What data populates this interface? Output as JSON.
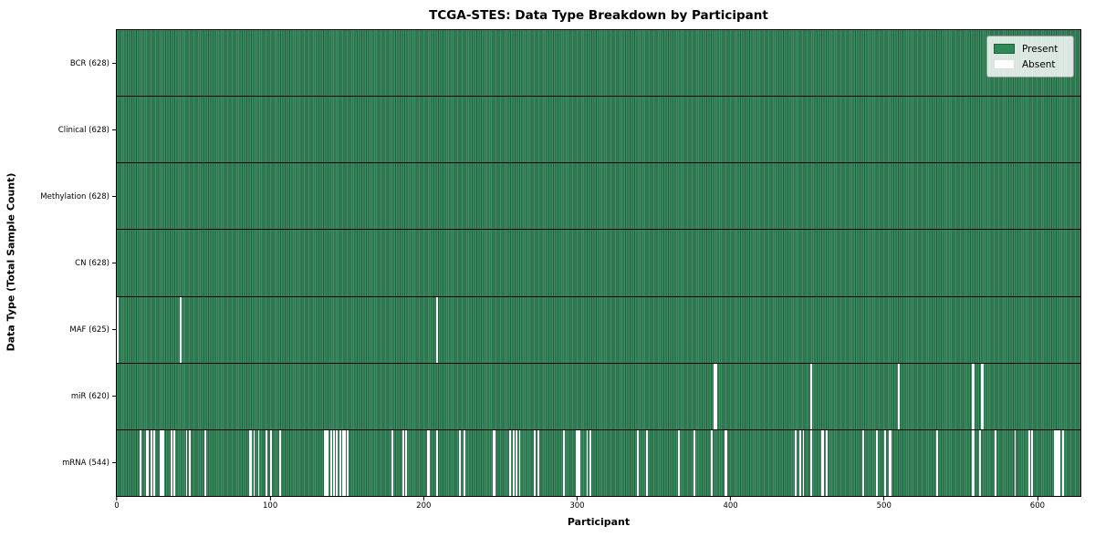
{
  "title": "TCGA-STES: Data Type Breakdown by Participant",
  "chart_data": {
    "type": "heatmap",
    "title": "TCGA-STES: Data Type Breakdown by Participant",
    "xlabel": "Participant",
    "ylabel": "Data Type (Total Sample Count)",
    "x_ticks": [
      0,
      100,
      200,
      300,
      400,
      500,
      600
    ],
    "x_range": [
      0,
      628
    ],
    "total_participants": 628,
    "grid": false,
    "legend_position": "upper right",
    "legend": {
      "entries": [
        {
          "label": "Present",
          "color": "#2e8b57"
        },
        {
          "label": "Absent",
          "color": "#ffffff"
        }
      ]
    },
    "rows": [
      {
        "label": "BCR",
        "present_count": 628,
        "absent_participants": []
      },
      {
        "label": "Clinical",
        "present_count": 628,
        "absent_participants": []
      },
      {
        "label": "Methylation",
        "present_count": 628,
        "absent_participants": []
      },
      {
        "label": "CN",
        "present_count": 628,
        "absent_participants": []
      },
      {
        "label": "MAF",
        "present_count": 625,
        "absent_participants": [
          0,
          41,
          208
        ]
      },
      {
        "label": "miR",
        "present_count": 620,
        "absent_participants": [
          389,
          390,
          452,
          509,
          557,
          558,
          563,
          564
        ]
      },
      {
        "label": "mRNA",
        "present_count": 544,
        "absent_participants": [
          15,
          19,
          20,
          22,
          24,
          28,
          29,
          30,
          35,
          37,
          45,
          47,
          57,
          86,
          87,
          89,
          92,
          97,
          100,
          106,
          135,
          136,
          137,
          139,
          141,
          143,
          145,
          147,
          148,
          150,
          179,
          186,
          188,
          202,
          203,
          208,
          223,
          226,
          245,
          246,
          256,
          258,
          260,
          262,
          272,
          274,
          291,
          299,
          300,
          301,
          306,
          308,
          339,
          345,
          366,
          376,
          387,
          396,
          397,
          442,
          445,
          447,
          452,
          459,
          460,
          462,
          486,
          495,
          500,
          503,
          504,
          534,
          557,
          558,
          562,
          572,
          585,
          594,
          596,
          611,
          612,
          613,
          614,
          616
        ]
      }
    ]
  },
  "colors": {
    "present_fill": "#2e8b57",
    "present_edge": "#215e3c",
    "absent_fill": "#ffffff",
    "row_separator": "#000000",
    "plot_border": "#000000"
  }
}
